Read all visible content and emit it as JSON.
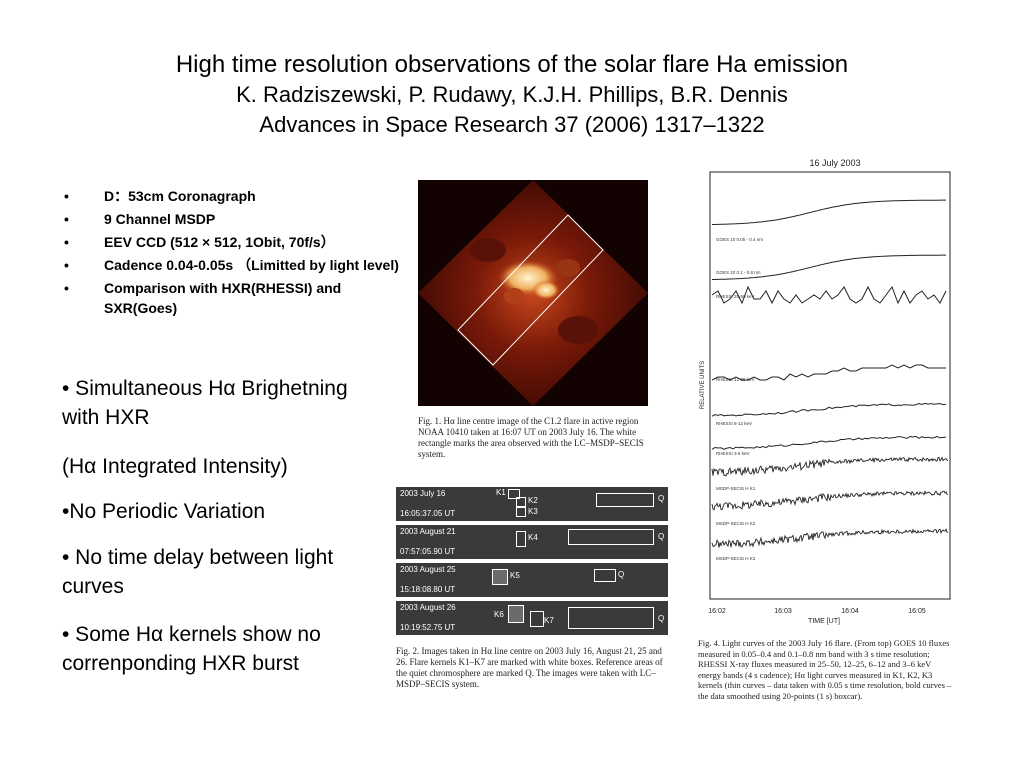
{
  "title": {
    "line1": "High time resolution observations of the solar flare Ha emission",
    "line2": "K. Radziszewski, P. Rudawy, K.J.H. Phillips, B.R. Dennis",
    "line3": "Advances in Space Research 37 (2006) 1317–1322"
  },
  "bullets": [
    "D：53cm  Coronagraph",
    "9 Channel MSDP",
    "EEV CCD (512 × 512,  1Obit,  70f/s）",
    "Cadence  0.04-0.05s （Limitted by light level)",
    "Comparison with HXR(RHESSI) and SXR(Goes)"
  ],
  "points": [
    "• Simultaneous Hα Brighetning with HXR",
    "(Hα Integrated Intensity)",
    "•No Periodic Variation",
    "• No time delay between light curves",
    "• Some Hα kernels show no correnponding HXR burst"
  ],
  "fig1": {
    "caption": "Fig. 1.  Hα line centre image of the C1.2 flare in active region NOAA 10410 taken at 16:07 UT on 2003 July 16. The white rectangle marks the area observed with the LC–MSDP–SECIS system."
  },
  "fig2": {
    "strips": [
      {
        "date": "2003 July 16",
        "time": "16:05:37.05 UT",
        "kernels": [
          "K1",
          "K2",
          "K3"
        ],
        "q": "Q"
      },
      {
        "date": "2003 August 21",
        "time": "07:57:05.90 UT",
        "kernels": [
          "K4"
        ],
        "q": "Q"
      },
      {
        "date": "2003 August 25",
        "time": "15:18:08.80 UT",
        "kernels": [
          "K5"
        ],
        "q": "Q"
      },
      {
        "date": "2003 August 26",
        "time": "10:19:52.75 UT",
        "kernels": [
          "K6",
          "K7"
        ],
        "q": "Q"
      }
    ],
    "caption": "Fig. 2.  Images taken in Hα line centre on 2003 July 16, August 21, 25 and 26. Flare kernels K1–K7 are marked with white boxes. Reference areas of the quiet chromosphere are marked Q. The images were taken with LC–MSDP–SECIS system."
  },
  "fig4": {
    "title": "16 July 2003",
    "ylabel": "RELATIVE UNITS",
    "xlabel": "TIME [UT]",
    "xticks": [
      "16:02",
      "16:03",
      "16:04",
      "16:05"
    ],
    "curve_labels": [
      "GOES 10  0.05 - 0.4 nm",
      "GOES 10  0.1 - 0.8 nm",
      "RHESSI 25-50 keV",
      "RHESSI 12-25 keV",
      "RHESSI 6-12 keV",
      "RHESSI 3-6 keV",
      "MSDP-SECIS H K1",
      "MSDP-SECIS H K2",
      "MSDP-SECIS H K3"
    ],
    "caption": "Fig. 4.  Light curves of the 2003 July 16 flare. (From top) GOES 10 fluxes measured in 0.05–0.4 and 0.1–0.8 nm band with 3 s time resolution; RHESSI X-ray fluxes measured in 25–50, 12–25, 6–12 and 3–6 keV energy bands (4 s cadence); Hα light curves measured in K1, K2, K3 kernels (thin curves – data taken with 0.05 s time resolution, bold curves – the data smoothed using 20-points (1 s) boxcar)."
  }
}
